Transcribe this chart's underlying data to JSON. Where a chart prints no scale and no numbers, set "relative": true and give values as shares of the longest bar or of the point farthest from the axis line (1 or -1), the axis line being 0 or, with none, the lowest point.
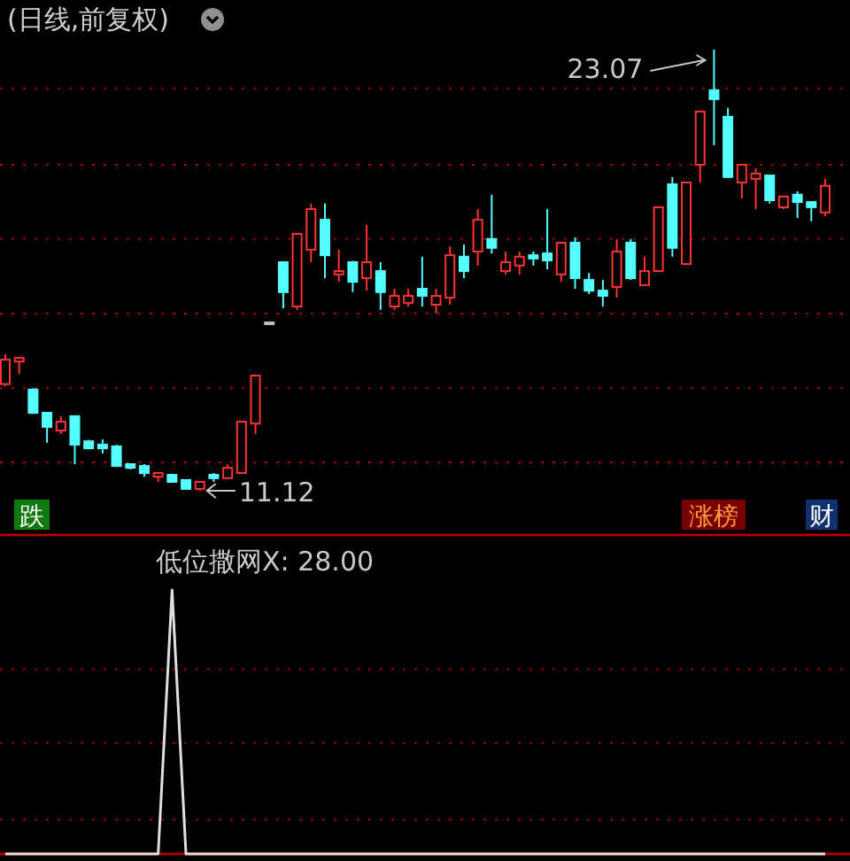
{
  "chart_data": [
    {
      "type": "candlestick",
      "title": "(日线,前复权)",
      "categories": [
        null,
        null,
        null,
        null,
        null,
        null,
        null,
        null,
        null,
        null,
        null,
        null,
        null,
        null,
        null,
        null,
        null,
        null,
        null,
        null,
        null,
        null,
        null,
        null,
        null,
        null,
        null,
        null,
        null,
        null,
        null,
        null,
        null,
        null,
        null,
        null,
        null,
        null,
        null,
        null,
        null,
        null,
        null,
        null,
        null,
        null,
        null,
        null,
        null,
        null,
        null,
        null,
        null,
        null,
        null,
        null,
        null,
        null,
        null,
        null
      ],
      "ohlc": [
        [
          14.01,
          14.82,
          13.95,
          14.67
        ],
        [
          14.62,
          14.75,
          14.29,
          14.72
        ],
        [
          13.86,
          13.9,
          13.2,
          13.23
        ],
        [
          13.23,
          13.25,
          12.42,
          12.85
        ],
        [
          12.75,
          13.14,
          12.66,
          12.99
        ],
        [
          13.14,
          13.16,
          11.84,
          12.37
        ],
        [
          12.46,
          12.5,
          12.24,
          12.27
        ],
        [
          12.37,
          12.51,
          12.13,
          12.27
        ],
        [
          12.32,
          12.37,
          11.77,
          11.79
        ],
        [
          11.84,
          11.86,
          11.7,
          11.74
        ],
        [
          11.79,
          11.84,
          11.5,
          11.6
        ],
        [
          11.5,
          11.62,
          11.36,
          11.6
        ],
        [
          11.55,
          11.58,
          11.34,
          11.36
        ],
        [
          11.41,
          11.43,
          11.15,
          11.17
        ],
        [
          11.17,
          11.38,
          11.12,
          11.36
        ],
        [
          11.55,
          11.6,
          11.36,
          11.46
        ],
        [
          11.46,
          11.84,
          11.44,
          11.74
        ],
        [
          11.6,
          13.02,
          11.58,
          12.99
        ],
        [
          12.94,
          14.26,
          12.66,
          14.24
        ],
        [
          15.68,
          15.68,
          15.68,
          15.68
        ],
        [
          17.31,
          17.33,
          16.06,
          16.5
        ],
        [
          16.11,
          18.1,
          16.02,
          18.08
        ],
        [
          17.65,
          18.9,
          17.31,
          18.75
        ],
        [
          18.46,
          18.9,
          16.88,
          17.5
        ],
        [
          16.98,
          17.65,
          16.78,
          17.07
        ],
        [
          17.31,
          17.35,
          16.5,
          16.78
        ],
        [
          16.88,
          18.32,
          16.54,
          17.31
        ],
        [
          17.07,
          17.31,
          16.02,
          16.5
        ],
        [
          16.11,
          16.59,
          16.02,
          16.4
        ],
        [
          16.21,
          16.59,
          16.11,
          16.4
        ],
        [
          16.59,
          17.46,
          16.11,
          16.4
        ],
        [
          16.16,
          16.59,
          15.92,
          16.4
        ],
        [
          16.35,
          17.74,
          16.16,
          17.5
        ],
        [
          17.46,
          17.79,
          16.88,
          17.07
        ],
        [
          17.6,
          18.75,
          17.22,
          18.46
        ],
        [
          17.94,
          19.14,
          17.55,
          17.7
        ],
        [
          17.07,
          17.6,
          16.98,
          17.31
        ],
        [
          17.22,
          17.6,
          16.98,
          17.46
        ],
        [
          17.5,
          17.6,
          17.22,
          17.41
        ],
        [
          17.55,
          18.75,
          17.12,
          17.36
        ],
        [
          16.98,
          17.86,
          16.78,
          17.84
        ],
        [
          17.84,
          17.98,
          16.59,
          16.88
        ],
        [
          16.83,
          17.02,
          16.45,
          16.54
        ],
        [
          16.54,
          16.83,
          16.11,
          16.4
        ],
        [
          16.64,
          17.94,
          16.35,
          17.6
        ],
        [
          17.84,
          17.94,
          16.83,
          16.88
        ],
        [
          16.69,
          17.46,
          16.66,
          17.07
        ],
        [
          17.07,
          18.82,
          17.05,
          18.8
        ],
        [
          19.42,
          19.62,
          17.46,
          17.7
        ],
        [
          17.26,
          19.49,
          17.24,
          19.47
        ],
        [
          19.95,
          21.41,
          19.47,
          21.39
        ],
        [
          21.97,
          23.07,
          20.48,
          21.73
        ],
        [
          21.25,
          21.49,
          19.6,
          19.62
        ],
        [
          19.47,
          19.97,
          19.04,
          19.95
        ],
        [
          19.57,
          19.86,
          18.75,
          19.71
        ],
        [
          19.66,
          19.68,
          18.9,
          18.99
        ],
        [
          18.8,
          19.11,
          18.75,
          19.09
        ],
        [
          19.14,
          19.23,
          18.51,
          18.94
        ],
        [
          18.94,
          18.96,
          18.42,
          18.8
        ],
        [
          18.66,
          19.57,
          18.56,
          19.38
        ]
      ],
      "colors": [
        "#ff3232",
        "#ff3232",
        "#54ffff",
        "#54ffff",
        "#ff3232",
        "#54ffff",
        "#54ffff",
        "#54ffff",
        "#54ffff",
        "#54ffff",
        "#54ffff",
        "#ff3232",
        "#54ffff",
        "#54ffff",
        "#ff3232",
        "#54ffff",
        "#ff3232",
        "#ff3232",
        "#ff3232",
        "#c0c0c0",
        "#54ffff",
        "#ff3232",
        "#ff3232",
        "#54ffff",
        "#ff3232",
        "#54ffff",
        "#ff3232",
        "#54ffff",
        "#ff3232",
        "#ff3232",
        "#54ffff",
        "#ff3232",
        "#ff3232",
        "#54ffff",
        "#ff3232",
        "#54ffff",
        "#ff3232",
        "#ff3232",
        "#54ffff",
        "#54ffff",
        "#ff3232",
        "#54ffff",
        "#54ffff",
        "#54ffff",
        "#ff3232",
        "#54ffff",
        "#ff3232",
        "#ff3232",
        "#54ffff",
        "#ff3232",
        "#ff3232",
        "#54ffff",
        "#54ffff",
        "#ff3232",
        "#ff3232",
        "#54ffff",
        "#ff3232",
        "#54ffff",
        "#54ffff",
        "#ff3232"
      ],
      "yticks": [
        {
          "value": 11.89,
          "label": null
        },
        {
          "value": 13.9,
          "label": null
        },
        {
          "value": 15.92,
          "label": null
        },
        {
          "value": 17.94,
          "label": null
        },
        {
          "value": 19.95,
          "label": null
        },
        {
          "value": 22.02,
          "label": null
        }
      ],
      "grid": true,
      "annotations": [
        "23.07",
        "11.12",
        "跌",
        "涨榜",
        "财"
      ]
    },
    {
      "type": "line",
      "title": "低位撒网X: 28.00",
      "relative": true,
      "color": "#e0e0e0",
      "ref_lines": [
        {
          "axis": "y",
          "value": 0.7,
          "color": "#a00000",
          "line_style": "dotted"
        },
        {
          "axis": "y",
          "value": 0.42,
          "color": "#a00000",
          "line_style": "dotted"
        },
        {
          "axis": "y",
          "value": 0.13,
          "color": "#a00000",
          "line_style": "dotted"
        }
      ],
      "categories": [
        null,
        null,
        null,
        null,
        null,
        null,
        null,
        null,
        null,
        null,
        null,
        null,
        null,
        null,
        null,
        null,
        null,
        null,
        null,
        null,
        null,
        null,
        null,
        null,
        null,
        null,
        null,
        null,
        null,
        null,
        null,
        null,
        null,
        null,
        null,
        null,
        null,
        null,
        null,
        null,
        null,
        null,
        null,
        null,
        null,
        null,
        null,
        null,
        null,
        null,
        null,
        null,
        null,
        null,
        null,
        null,
        null,
        null,
        null,
        null
      ],
      "values": [
        0,
        0,
        0,
        0,
        0,
        0,
        0,
        0,
        0,
        0,
        0,
        0,
        1,
        0,
        0,
        0,
        0,
        0,
        0,
        0,
        0,
        0,
        0,
        0,
        0,
        0,
        0,
        0,
        0,
        0,
        0,
        0,
        0,
        0,
        0,
        0,
        0,
        0,
        0,
        0,
        0,
        0,
        0,
        0,
        0,
        0,
        0,
        0,
        0,
        0,
        0,
        0,
        0,
        0,
        0,
        0,
        0,
        0,
        0,
        0
      ]
    }
  ]
}
